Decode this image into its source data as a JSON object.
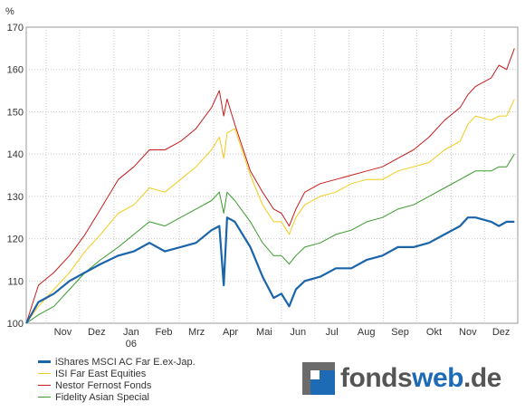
{
  "brand": {
    "part1": "fonds",
    "part2": "web",
    "part3": ".de"
  },
  "chart_data": {
    "type": "line",
    "title": "",
    "xlabel": "",
    "ylabel": "%",
    "ylim": [
      100,
      170
    ],
    "yticks": [
      100,
      110,
      120,
      130,
      140,
      150,
      160,
      170
    ],
    "grid": true,
    "legend_position": "bottom-left",
    "x_tick_labels": [
      "Nov",
      "Dez",
      "Jan",
      "Feb",
      "Mrz",
      "Apr",
      "Mai",
      "Jun",
      "Jul",
      "Aug",
      "Sep",
      "Okt",
      "Nov",
      "Dez"
    ],
    "x_tick_sublabel": {
      "index": 2,
      "text": "06"
    },
    "x": [
      "2005-10-14",
      "2005-10-25",
      "2005-11-08",
      "2005-11-22",
      "2005-12-06",
      "2005-12-20",
      "2006-01-05",
      "2006-01-19",
      "2006-02-02",
      "2006-02-16",
      "2006-03-02",
      "2006-03-16",
      "2006-03-30",
      "2006-04-06",
      "2006-04-10",
      "2006-04-13",
      "2006-04-20",
      "2006-05-04",
      "2006-05-15",
      "2006-05-25",
      "2006-06-01",
      "2006-06-08",
      "2006-06-14",
      "2006-06-22",
      "2006-07-06",
      "2006-07-20",
      "2006-08-03",
      "2006-08-17",
      "2006-08-31",
      "2006-09-14",
      "2006-09-28",
      "2006-10-12",
      "2006-10-26",
      "2006-11-09",
      "2006-11-16",
      "2006-11-23",
      "2006-12-07",
      "2006-12-14",
      "2006-12-21",
      "2006-12-28"
    ],
    "series": [
      {
        "name": "iShares MSCI AC Far E.ex-Jap.",
        "color": "#1a64aa",
        "values": [
          100,
          105,
          107,
          110,
          112,
          114,
          116,
          117,
          119,
          117,
          118,
          119,
          122,
          123,
          109,
          125,
          124,
          118,
          111,
          106,
          107,
          104,
          108,
          110,
          111,
          113,
          113,
          115,
          116,
          118,
          118,
          119,
          121,
          123,
          125,
          125,
          124,
          123,
          124,
          124
        ]
      },
      {
        "name": "ISI Far East Equities",
        "color": "#f2cc1c",
        "values": [
          100,
          104,
          108,
          112,
          117,
          121,
          126,
          128,
          132,
          131,
          134,
          137,
          141,
          144,
          139,
          145,
          146,
          135,
          128,
          124,
          124,
          121,
          125,
          128,
          130,
          131,
          133,
          134,
          134,
          136,
          137,
          138,
          141,
          143,
          147,
          149,
          148,
          149,
          149,
          153
        ]
      },
      {
        "name": "Nestor Fernost Fonds",
        "color": "#c81c1c",
        "values": [
          100,
          109,
          112,
          116,
          121,
          127,
          134,
          137,
          141,
          141,
          143,
          146,
          151,
          155,
          149,
          153,
          147,
          136,
          131,
          127,
          126,
          123,
          127,
          131,
          133,
          134,
          135,
          136,
          137,
          139,
          141,
          144,
          148,
          151,
          154,
          156,
          158,
          161,
          160,
          165
        ]
      },
      {
        "name": "Fidelity Asian Special",
        "color": "#3a9a2c",
        "values": [
          100,
          102,
          104,
          108,
          112,
          115,
          118,
          121,
          124,
          123,
          125,
          127,
          129,
          131,
          126,
          131,
          129,
          124,
          119,
          116,
          116,
          114,
          116,
          118,
          119,
          121,
          122,
          124,
          125,
          127,
          128,
          130,
          132,
          134,
          135,
          136,
          136,
          137,
          137,
          140
        ]
      }
    ]
  }
}
